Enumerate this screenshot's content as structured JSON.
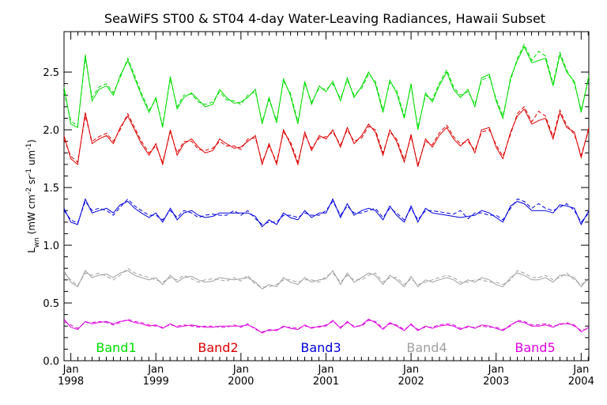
{
  "chart_data": {
    "type": "line",
    "title": "SeaWiFS ST00 & ST04 4-day Water-Leaving Radiances, Hawaii Subset",
    "ylabel": {
      "main": "L",
      "sub": "wn",
      "paren_open": " (mW cm",
      "sup1": "-2",
      "sr": " sr",
      "sup2": "-1",
      "um": " um",
      "sup3": "-1",
      "paren_close": ")"
    },
    "xlim": [
      1997.92,
      2004.09
    ],
    "ylim": [
      0.0,
      2.85
    ],
    "y_ticks": [
      0.0,
      0.5,
      1.0,
      1.5,
      2.0,
      2.5
    ],
    "y_tick_labels": [
      "0.0",
      "0.5",
      "1.0",
      "1.5",
      "2.0",
      "2.5"
    ],
    "x_major_ticks": [
      1998.0,
      1999.0,
      2000.0,
      2001.0,
      2002.0,
      2003.0,
      2004.0
    ],
    "x_tick_month_labels": [
      "Jan",
      "Jan",
      "Jan",
      "Jan",
      "Jan",
      "Jan",
      "Jan"
    ],
    "x_tick_year_labels": [
      "1998",
      "1999",
      "2000",
      "2001",
      "2002",
      "2003",
      "2004"
    ],
    "x": [
      1997.92,
      1998.0,
      1998.08,
      1998.17,
      1998.25,
      1998.33,
      1998.42,
      1998.5,
      1998.58,
      1998.67,
      1998.75,
      1998.83,
      1998.92,
      1999.0,
      1999.08,
      1999.17,
      1999.25,
      1999.33,
      1999.42,
      1999.5,
      1999.58,
      1999.67,
      1999.75,
      1999.83,
      1999.92,
      2000.0,
      2000.08,
      2000.17,
      2000.25,
      2000.33,
      2000.42,
      2000.5,
      2000.58,
      2000.67,
      2000.75,
      2000.83,
      2000.92,
      2001.0,
      2001.08,
      2001.17,
      2001.25,
      2001.33,
      2001.42,
      2001.5,
      2001.58,
      2001.67,
      2001.75,
      2001.83,
      2001.92,
      2002.0,
      2002.08,
      2002.17,
      2002.25,
      2002.33,
      2002.42,
      2002.5,
      2002.58,
      2002.67,
      2002.75,
      2002.83,
      2002.92,
      2003.0,
      2003.08,
      2003.17,
      2003.25,
      2003.33,
      2003.42,
      2003.5,
      2003.58,
      2003.67,
      2003.75,
      2003.83,
      2003.92,
      2004.0,
      2004.09
    ],
    "series": [
      {
        "name": "Band1",
        "color": "#00dd00",
        "solid": [
          2.37,
          2.05,
          2.02,
          2.65,
          2.25,
          2.35,
          2.38,
          2.3,
          2.47,
          2.6,
          2.45,
          2.3,
          2.15,
          2.28,
          2.02,
          2.46,
          2.18,
          2.28,
          2.32,
          2.26,
          2.2,
          2.22,
          2.35,
          2.28,
          2.23,
          2.24,
          2.28,
          2.35,
          2.05,
          2.28,
          2.06,
          2.44,
          2.3,
          2.05,
          2.42,
          2.22,
          2.38,
          2.33,
          2.42,
          2.25,
          2.45,
          2.28,
          2.38,
          2.5,
          2.4,
          2.15,
          2.43,
          2.32,
          2.1,
          2.4,
          2.0,
          2.32,
          2.24,
          2.38,
          2.5,
          2.35,
          2.28,
          2.35,
          2.2,
          2.45,
          2.48,
          2.25,
          2.1,
          2.45,
          2.6,
          2.72,
          2.58,
          2.6,
          2.62,
          2.38,
          2.65,
          2.5,
          2.42,
          2.15,
          2.47
        ],
        "dashed": [
          2.33,
          2.08,
          2.03,
          2.62,
          2.28,
          2.37,
          2.4,
          2.32,
          2.45,
          2.62,
          2.47,
          2.32,
          2.17,
          2.26,
          2.04,
          2.44,
          2.2,
          2.3,
          2.31,
          2.24,
          2.22,
          2.24,
          2.33,
          2.26,
          2.25,
          2.22,
          2.3,
          2.33,
          2.07,
          2.26,
          2.08,
          2.42,
          2.32,
          2.07,
          2.4,
          2.24,
          2.36,
          2.35,
          2.4,
          2.27,
          2.43,
          2.3,
          2.36,
          2.48,
          2.42,
          2.17,
          2.41,
          2.34,
          2.12,
          2.38,
          2.02,
          2.3,
          2.26,
          2.4,
          2.52,
          2.37,
          2.3,
          2.33,
          2.22,
          2.43,
          2.46,
          2.27,
          2.12,
          2.43,
          2.62,
          2.74,
          2.6,
          2.68,
          2.64,
          2.4,
          2.67,
          2.52,
          2.4,
          2.17,
          2.45
        ]
      },
      {
        "name": "Band2",
        "color": "#dd0000",
        "solid": [
          1.95,
          1.75,
          1.7,
          2.15,
          1.88,
          1.92,
          1.95,
          1.88,
          2.02,
          2.12,
          2.0,
          1.88,
          1.78,
          1.88,
          1.7,
          2.0,
          1.78,
          1.88,
          1.92,
          1.85,
          1.8,
          1.82,
          1.92,
          1.88,
          1.84,
          1.85,
          1.9,
          1.95,
          1.7,
          1.88,
          1.7,
          2.0,
          1.88,
          1.7,
          1.98,
          1.82,
          1.95,
          1.92,
          2.0,
          1.85,
          2.02,
          1.88,
          1.95,
          2.05,
          1.98,
          1.78,
          2.0,
          1.9,
          1.72,
          1.96,
          1.68,
          1.92,
          1.85,
          1.95,
          2.02,
          1.92,
          1.86,
          1.92,
          1.8,
          2.0,
          2.02,
          1.85,
          1.75,
          1.98,
          2.12,
          2.18,
          2.05,
          2.08,
          2.1,
          1.92,
          2.15,
          2.02,
          1.98,
          1.76,
          2.02
        ],
        "dashed": [
          1.92,
          1.77,
          1.72,
          2.12,
          1.9,
          1.94,
          1.97,
          1.9,
          2.0,
          2.14,
          2.02,
          1.9,
          1.8,
          1.86,
          1.72,
          1.98,
          1.8,
          1.9,
          1.9,
          1.83,
          1.82,
          1.84,
          1.9,
          1.86,
          1.86,
          1.83,
          1.92,
          1.93,
          1.72,
          1.86,
          1.72,
          1.98,
          1.9,
          1.72,
          1.96,
          1.84,
          1.93,
          1.94,
          1.98,
          1.87,
          2.0,
          1.9,
          1.93,
          2.03,
          2.0,
          1.8,
          1.98,
          1.92,
          1.74,
          1.94,
          1.7,
          1.9,
          1.87,
          1.97,
          2.04,
          1.94,
          1.88,
          1.9,
          1.82,
          1.98,
          2.0,
          1.87,
          1.77,
          1.96,
          2.14,
          2.2,
          2.07,
          2.16,
          2.12,
          1.94,
          2.17,
          2.04,
          1.96,
          1.78,
          2.0
        ]
      },
      {
        "name": "Band3",
        "color": "#0000dd",
        "solid": [
          1.32,
          1.2,
          1.18,
          1.4,
          1.28,
          1.3,
          1.32,
          1.28,
          1.35,
          1.38,
          1.32,
          1.28,
          1.24,
          1.28,
          1.2,
          1.32,
          1.22,
          1.28,
          1.3,
          1.26,
          1.24,
          1.25,
          1.28,
          1.28,
          1.28,
          1.28,
          1.28,
          1.25,
          1.16,
          1.22,
          1.18,
          1.28,
          1.24,
          1.22,
          1.3,
          1.24,
          1.28,
          1.28,
          1.4,
          1.24,
          1.36,
          1.26,
          1.3,
          1.32,
          1.3,
          1.22,
          1.34,
          1.26,
          1.2,
          1.34,
          1.2,
          1.32,
          1.28,
          1.27,
          1.26,
          1.25,
          1.24,
          1.25,
          1.26,
          1.3,
          1.28,
          1.24,
          1.2,
          1.34,
          1.38,
          1.36,
          1.3,
          1.3,
          1.3,
          1.28,
          1.35,
          1.34,
          1.32,
          1.18,
          1.3
        ],
        "dashed": [
          1.3,
          1.22,
          1.19,
          1.38,
          1.3,
          1.32,
          1.3,
          1.26,
          1.33,
          1.4,
          1.34,
          1.3,
          1.26,
          1.26,
          1.22,
          1.3,
          1.24,
          1.3,
          1.28,
          1.24,
          1.26,
          1.27,
          1.26,
          1.26,
          1.3,
          1.26,
          1.3,
          1.23,
          1.18,
          1.2,
          1.2,
          1.26,
          1.26,
          1.24,
          1.28,
          1.26,
          1.26,
          1.3,
          1.38,
          1.26,
          1.34,
          1.28,
          1.28,
          1.3,
          1.32,
          1.24,
          1.32,
          1.28,
          1.22,
          1.32,
          1.22,
          1.3,
          1.3,
          1.29,
          1.28,
          1.27,
          1.3,
          1.23,
          1.28,
          1.28,
          1.26,
          1.26,
          1.22,
          1.32,
          1.4,
          1.38,
          1.32,
          1.36,
          1.32,
          1.3,
          1.33,
          1.36,
          1.3,
          1.2,
          1.28
        ]
      },
      {
        "name": "Band4",
        "color": "#a0a0a0",
        "solid": [
          0.78,
          0.68,
          0.64,
          0.78,
          0.72,
          0.74,
          0.75,
          0.72,
          0.76,
          0.78,
          0.74,
          0.72,
          0.7,
          0.72,
          0.66,
          0.74,
          0.68,
          0.72,
          0.73,
          0.7,
          0.68,
          0.69,
          0.72,
          0.71,
          0.7,
          0.71,
          0.72,
          0.68,
          0.62,
          0.66,
          0.64,
          0.72,
          0.68,
          0.66,
          0.72,
          0.68,
          0.7,
          0.71,
          0.78,
          0.66,
          0.76,
          0.68,
          0.72,
          0.76,
          0.74,
          0.66,
          0.74,
          0.7,
          0.64,
          0.73,
          0.64,
          0.7,
          0.68,
          0.7,
          0.72,
          0.7,
          0.66,
          0.7,
          0.68,
          0.72,
          0.7,
          0.66,
          0.64,
          0.72,
          0.76,
          0.74,
          0.7,
          0.7,
          0.72,
          0.68,
          0.74,
          0.74,
          0.72,
          0.64,
          0.72
        ],
        "dashed": [
          0.76,
          0.7,
          0.65,
          0.76,
          0.74,
          0.76,
          0.73,
          0.7,
          0.74,
          0.8,
          0.76,
          0.74,
          0.72,
          0.7,
          0.68,
          0.72,
          0.7,
          0.74,
          0.71,
          0.68,
          0.7,
          0.71,
          0.7,
          0.69,
          0.72,
          0.69,
          0.74,
          0.66,
          0.64,
          0.64,
          0.66,
          0.7,
          0.7,
          0.68,
          0.7,
          0.7,
          0.68,
          0.73,
          0.76,
          0.68,
          0.74,
          0.7,
          0.7,
          0.74,
          0.76,
          0.68,
          0.72,
          0.72,
          0.66,
          0.71,
          0.66,
          0.68,
          0.7,
          0.72,
          0.74,
          0.72,
          0.68,
          0.68,
          0.7,
          0.7,
          0.68,
          0.68,
          0.66,
          0.7,
          0.78,
          0.76,
          0.72,
          0.72,
          0.74,
          0.7,
          0.72,
          0.76,
          0.7,
          0.66,
          0.7
        ]
      },
      {
        "name": "Band5",
        "color": "#dd00dd",
        "solid": [
          0.36,
          0.29,
          0.27,
          0.34,
          0.32,
          0.33,
          0.34,
          0.32,
          0.34,
          0.35,
          0.33,
          0.32,
          0.3,
          0.31,
          0.28,
          0.32,
          0.29,
          0.3,
          0.31,
          0.3,
          0.29,
          0.29,
          0.3,
          0.3,
          0.3,
          0.3,
          0.31,
          0.28,
          0.24,
          0.27,
          0.26,
          0.3,
          0.28,
          0.27,
          0.31,
          0.28,
          0.3,
          0.3,
          0.35,
          0.28,
          0.34,
          0.29,
          0.31,
          0.36,
          0.33,
          0.27,
          0.33,
          0.3,
          0.26,
          0.32,
          0.26,
          0.3,
          0.28,
          0.3,
          0.31,
          0.3,
          0.27,
          0.3,
          0.28,
          0.31,
          0.3,
          0.28,
          0.26,
          0.31,
          0.34,
          0.33,
          0.3,
          0.3,
          0.31,
          0.29,
          0.32,
          0.32,
          0.31,
          0.25,
          0.29
        ],
        "dashed": [
          0.34,
          0.31,
          0.28,
          0.33,
          0.33,
          0.34,
          0.33,
          0.31,
          0.33,
          0.36,
          0.34,
          0.33,
          0.31,
          0.3,
          0.29,
          0.31,
          0.3,
          0.31,
          0.3,
          0.29,
          0.3,
          0.3,
          0.29,
          0.29,
          0.31,
          0.29,
          0.32,
          0.27,
          0.25,
          0.26,
          0.27,
          0.29,
          0.29,
          0.28,
          0.3,
          0.29,
          0.29,
          0.31,
          0.34,
          0.29,
          0.33,
          0.3,
          0.3,
          0.35,
          0.34,
          0.28,
          0.32,
          0.31,
          0.27,
          0.31,
          0.27,
          0.29,
          0.29,
          0.31,
          0.32,
          0.31,
          0.28,
          0.29,
          0.29,
          0.3,
          0.29,
          0.29,
          0.27,
          0.3,
          0.35,
          0.34,
          0.31,
          0.31,
          0.32,
          0.3,
          0.31,
          0.33,
          0.3,
          0.26,
          0.28
        ]
      }
    ]
  }
}
